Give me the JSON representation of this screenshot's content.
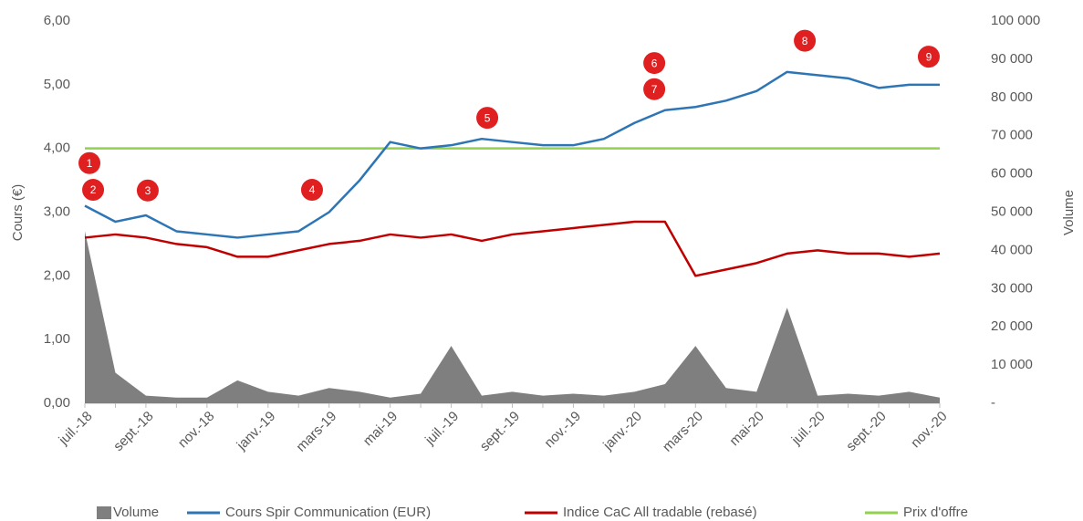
{
  "chart_data": {
    "type": "combo",
    "y_label": "Cours (€)",
    "y2_label": "Volume",
    "categories": [
      "juil.-18",
      null,
      "sept.-18",
      null,
      "nov.-18",
      null,
      "janv.-19",
      null,
      "mars-19",
      null,
      "mai-19",
      null,
      "juil.-19",
      null,
      "sept.-19",
      null,
      "nov.-19",
      null,
      "janv.-20",
      null,
      "mars-20",
      null,
      "mai-20",
      null,
      "juil.-20",
      null,
      "sept.-20",
      null,
      "nov.-20"
    ],
    "series": [
      {
        "name": "Volume",
        "type": "area",
        "axis": "y2",
        "color": "#7f7f7f",
        "values": [
          45000,
          8000,
          2000,
          1500,
          1500,
          6000,
          3000,
          2000,
          4000,
          3000,
          1500,
          2500,
          15000,
          2000,
          3000,
          2000,
          2500,
          2000,
          3000,
          5000,
          15000,
          4000,
          3000,
          25000,
          2000,
          2500,
          2000,
          3000,
          1500
        ]
      },
      {
        "name": "Cours Spir Communication (EUR)",
        "type": "line",
        "color": "#2e75b6",
        "values": [
          3.1,
          2.85,
          2.95,
          2.7,
          2.65,
          2.6,
          2.65,
          2.7,
          3.0,
          3.5,
          4.1,
          4.0,
          4.05,
          4.15,
          4.1,
          4.05,
          4.05,
          4.15,
          4.4,
          4.6,
          4.65,
          4.75,
          4.9,
          5.2,
          5.15,
          5.1,
          4.95,
          5.0,
          5.0
        ]
      },
      {
        "name": "Indice CaC All tradable (rebasé)",
        "type": "line",
        "color": "#c00000",
        "values": [
          2.6,
          2.65,
          2.6,
          2.5,
          2.45,
          2.3,
          2.3,
          2.4,
          2.5,
          2.55,
          2.65,
          2.6,
          2.65,
          2.55,
          2.65,
          2.7,
          2.75,
          2.8,
          2.85,
          2.85,
          2.0,
          2.1,
          2.2,
          2.35,
          2.4,
          2.35,
          2.35,
          2.3,
          2.35
        ]
      },
      {
        "name": "Prix d'offre",
        "type": "line",
        "color": "#92d050",
        "values": [
          4,
          4,
          4,
          4,
          4,
          4,
          4,
          4,
          4,
          4,
          4,
          4,
          4,
          4,
          4,
          4,
          4,
          4,
          4,
          4,
          4,
          4,
          4,
          4,
          4,
          4,
          4,
          4,
          4
        ]
      }
    ],
    "ylim": [
      0,
      6
    ],
    "yticks": [
      {
        "value": 0,
        "label": "0,00"
      },
      {
        "value": 1,
        "label": "1,00"
      },
      {
        "value": 2,
        "label": "2,00"
      },
      {
        "value": 3,
        "label": "3,00"
      },
      {
        "value": 4,
        "label": "4,00"
      },
      {
        "value": 5,
        "label": "5,00"
      },
      {
        "value": 6,
        "label": "6,00"
      }
    ],
    "y2lim": [
      0,
      100000
    ],
    "y2ticks": [
      {
        "value": 0,
        "label": "-"
      },
      {
        "value": 10000,
        "label": "10 000"
      },
      {
        "value": 20000,
        "label": "20 000"
      },
      {
        "value": 30000,
        "label": "30 000"
      },
      {
        "value": 40000,
        "label": "40 000"
      },
      {
        "value": 50000,
        "label": "50 000"
      },
      {
        "value": 60000,
        "label": "60 000"
      },
      {
        "value": 70000,
        "label": "70 000"
      },
      {
        "value": 80000,
        "label": "80 000"
      },
      {
        "value": 90000,
        "label": "90 000"
      },
      {
        "value": 100000,
        "label": "100 000"
      }
    ],
    "annotations": [
      {
        "label": "1",
        "x": 0.15,
        "y": 3.77
      },
      {
        "label": "2",
        "x": 0.27,
        "y": 3.35
      },
      {
        "label": "3",
        "x": 2.06,
        "y": 3.34
      },
      {
        "label": "4",
        "x": 7.44,
        "y": 3.35
      },
      {
        "label": "5",
        "x": 13.18,
        "y": 4.48
      },
      {
        "label": "6",
        "x": 18.65,
        "y": 5.34
      },
      {
        "label": "7",
        "x": 18.65,
        "y": 4.93
      },
      {
        "label": "8",
        "x": 23.58,
        "y": 5.69
      },
      {
        "label": "9",
        "x": 27.64,
        "y": 5.44
      }
    ],
    "annotation_color": "#e02020",
    "legend": "bottom"
  }
}
